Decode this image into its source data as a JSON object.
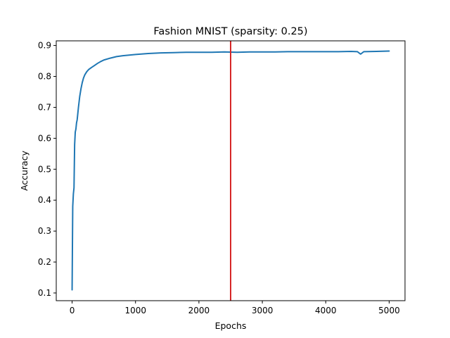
{
  "chart_data": {
    "type": "line",
    "title": "Fashion MNIST (sparsity: 0.25)",
    "xlabel": "Epochs",
    "ylabel": "Accuracy",
    "xlim": [
      -250,
      5250
    ],
    "ylim": [
      0.075,
      0.915
    ],
    "xticks": [
      0,
      1000,
      2000,
      3000,
      4000,
      5000
    ],
    "yticks": [
      0.1,
      0.2,
      0.3,
      0.4,
      0.5,
      0.6,
      0.7,
      0.8,
      0.9
    ],
    "grid": false,
    "series": [
      {
        "color": "#1f77b4",
        "x": [
          0,
          5,
          10,
          20,
          30,
          40,
          50,
          60,
          70,
          80,
          90,
          100,
          120,
          140,
          160,
          180,
          200,
          230,
          260,
          300,
          350,
          400,
          450,
          500,
          600,
          700,
          800,
          900,
          1000,
          1200,
          1400,
          1600,
          1800,
          2000,
          2200,
          2400,
          2600,
          2800,
          3000,
          3200,
          3400,
          3600,
          3800,
          4000,
          4200,
          4400,
          4500,
          4550,
          4600,
          4800,
          5000
        ],
        "y": [
          0.11,
          0.25,
          0.38,
          0.42,
          0.44,
          0.58,
          0.62,
          0.63,
          0.65,
          0.66,
          0.68,
          0.7,
          0.735,
          0.76,
          0.78,
          0.795,
          0.805,
          0.815,
          0.822,
          0.828,
          0.835,
          0.842,
          0.848,
          0.853,
          0.859,
          0.864,
          0.867,
          0.869,
          0.871,
          0.874,
          0.876,
          0.877,
          0.878,
          0.878,
          0.878,
          0.879,
          0.878,
          0.879,
          0.879,
          0.879,
          0.88,
          0.88,
          0.88,
          0.88,
          0.88,
          0.881,
          0.88,
          0.872,
          0.88,
          0.881,
          0.882
        ]
      }
    ],
    "vline": {
      "x": 2500,
      "color": "#d62728"
    }
  }
}
